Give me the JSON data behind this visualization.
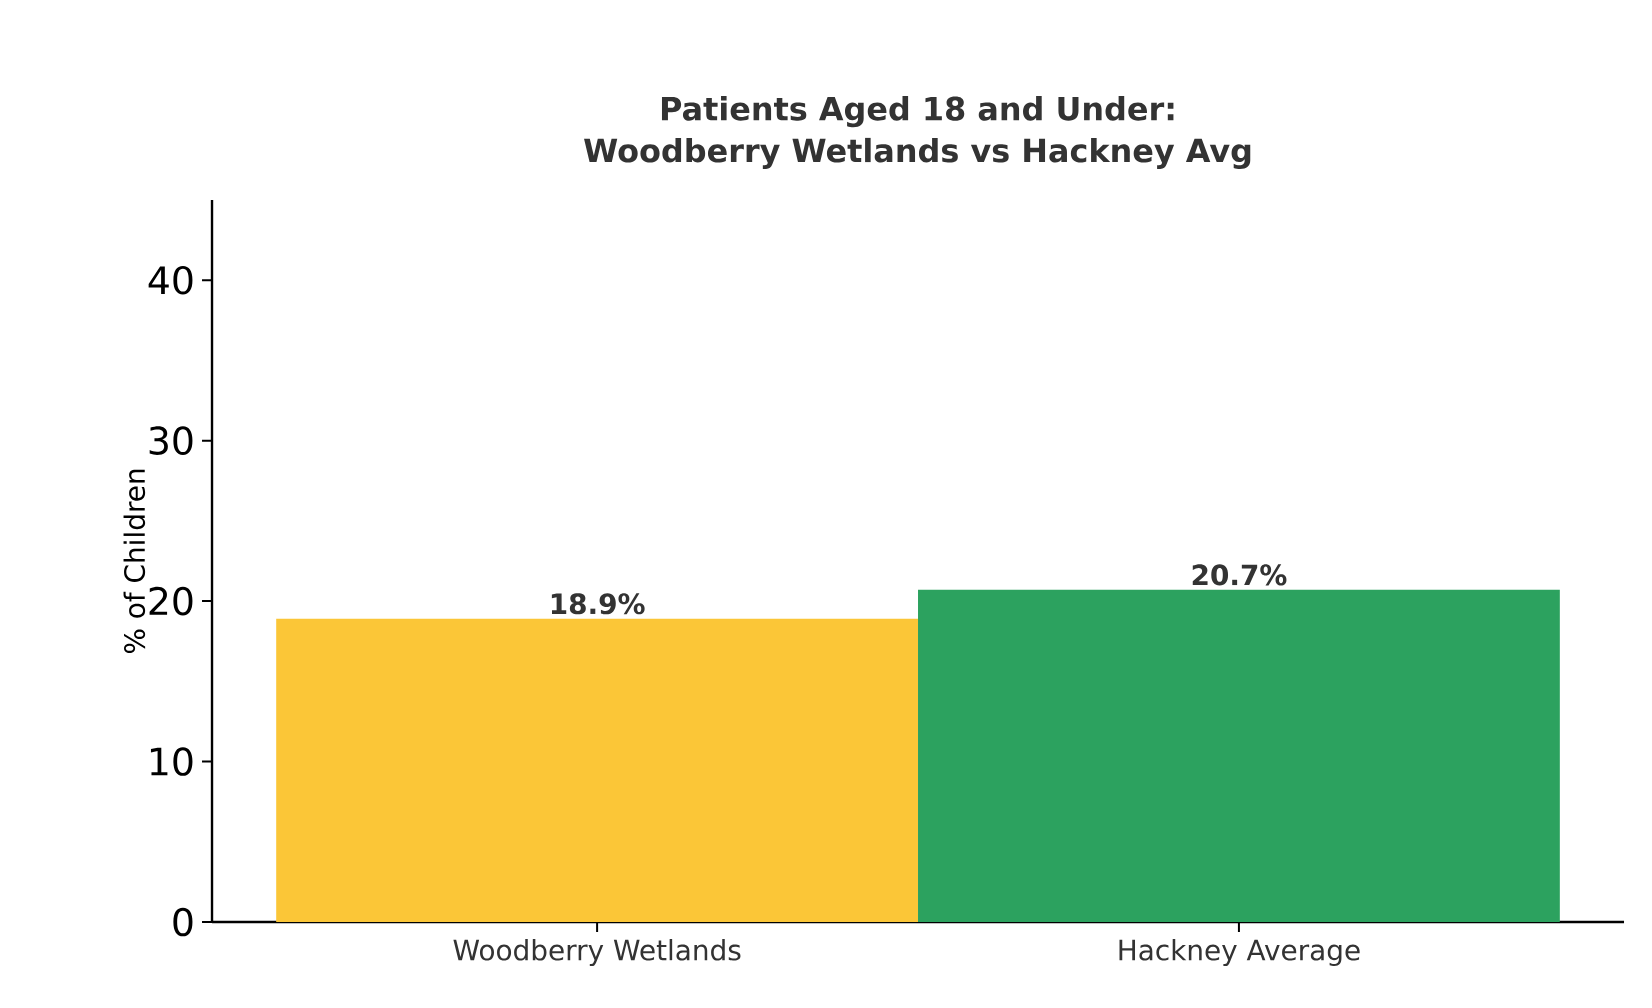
{
  "chart_data": {
    "type": "bar",
    "title": "Patients Aged 18 and Under:\nWoodberry Wetlands vs Hackney Avg",
    "ylabel": "% of Children",
    "categories": [
      "Woodberry Wetlands",
      "Hackney Average"
    ],
    "values": [
      18.9,
      20.7
    ],
    "colors": [
      "#fbc637",
      "#2ca25f"
    ],
    "value_labels": [
      "18.9%",
      "20.7%"
    ],
    "ylim": [
      0,
      45
    ],
    "yticks": [
      0,
      10,
      20,
      30,
      40
    ]
  }
}
